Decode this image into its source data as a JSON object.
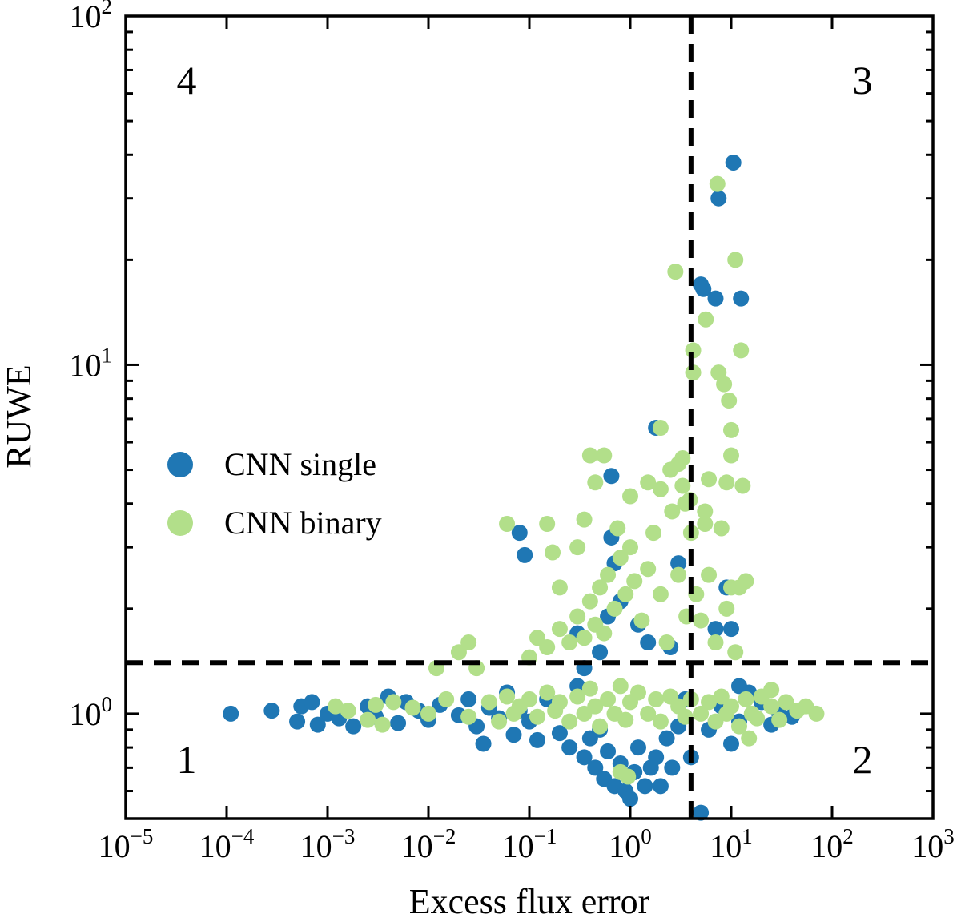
{
  "chart_data": {
    "type": "scatter",
    "xlabel": "Excess flux error",
    "ylabel": "RUWE",
    "xscale": "log",
    "yscale": "log",
    "xlim": [
      1e-05,
      1000
    ],
    "ylim": [
      0.5,
      100
    ],
    "x_tick_labels": [
      {
        "base": "10",
        "exp": "−5",
        "value": 1e-05
      },
      {
        "base": "10",
        "exp": "−4",
        "value": 0.0001
      },
      {
        "base": "10",
        "exp": "−3",
        "value": 0.001
      },
      {
        "base": "10",
        "exp": "−2",
        "value": 0.01
      },
      {
        "base": "10",
        "exp": "−1",
        "value": 0.1
      },
      {
        "base": "10",
        "exp": "0",
        "value": 1
      },
      {
        "base": "10",
        "exp": "1",
        "value": 10
      },
      {
        "base": "10",
        "exp": "2",
        "value": 100
      },
      {
        "base": "10",
        "exp": "3",
        "value": 1000
      }
    ],
    "y_tick_labels": [
      {
        "base": "10",
        "exp": "0",
        "value": 1
      },
      {
        "base": "10",
        "exp": "1",
        "value": 10
      },
      {
        "base": "10",
        "exp": "2",
        "value": 100
      }
    ],
    "grid": false,
    "legend_placement": "center-left",
    "threshold_lines": {
      "x": 4,
      "y": 1.4,
      "style": "dashed",
      "color": "#000000"
    },
    "quadrant_labels": [
      {
        "text": "1",
        "position": "bottom-left"
      },
      {
        "text": "2",
        "position": "bottom-right"
      },
      {
        "text": "3",
        "position": "top-right"
      },
      {
        "text": "4",
        "position": "top-left"
      }
    ],
    "series": [
      {
        "name": "CNN single",
        "color": "#1f77b4",
        "points": [
          [
            0.00011,
            1.0
          ],
          [
            0.00028,
            1.02
          ],
          [
            0.0005,
            0.95
          ],
          [
            0.00055,
            1.05
          ],
          [
            0.0007,
            1.08
          ],
          [
            0.0008,
            0.93
          ],
          [
            0.001,
            1.0
          ],
          [
            0.0013,
            0.97
          ],
          [
            0.0018,
            0.92
          ],
          [
            0.0025,
            1.05
          ],
          [
            0.003,
            0.98
          ],
          [
            0.004,
            1.12
          ],
          [
            0.005,
            0.94
          ],
          [
            0.006,
            1.08
          ],
          [
            0.008,
            1.02
          ],
          [
            0.01,
            0.96
          ],
          [
            0.013,
            1.06
          ],
          [
            0.02,
            0.99
          ],
          [
            0.025,
            1.1
          ],
          [
            0.03,
            0.92
          ],
          [
            0.035,
            0.82
          ],
          [
            0.04,
            1.04
          ],
          [
            0.05,
            0.97
          ],
          [
            0.06,
            1.15
          ],
          [
            0.07,
            0.87
          ],
          [
            0.08,
            1.02
          ],
          [
            0.1,
            0.95
          ],
          [
            0.12,
            0.84
          ],
          [
            0.15,
            1.1
          ],
          [
            0.2,
            0.88
          ],
          [
            0.25,
            0.8
          ],
          [
            0.3,
            1.2
          ],
          [
            0.35,
            0.75
          ],
          [
            0.4,
            0.85
          ],
          [
            0.45,
            0.7
          ],
          [
            0.5,
            0.9
          ],
          [
            0.55,
            0.65
          ],
          [
            0.6,
            0.78
          ],
          [
            0.7,
            0.62
          ],
          [
            0.8,
            0.72
          ],
          [
            0.9,
            0.6
          ],
          [
            1.0,
            0.57
          ],
          [
            1.1,
            0.68
          ],
          [
            1.2,
            0.8
          ],
          [
            1.4,
            0.62
          ],
          [
            1.6,
            0.7
          ],
          [
            1.8,
            0.75
          ],
          [
            2.0,
            0.62
          ],
          [
            2.3,
            0.85
          ],
          [
            2.6,
            0.7
          ],
          [
            3,
            0.92
          ],
          [
            3.5,
            1.1
          ],
          [
            4,
            0.75
          ],
          [
            5,
            0.52
          ],
          [
            6,
            0.9
          ],
          [
            8,
            1.05
          ],
          [
            10,
            0.82
          ],
          [
            12,
            0.95
          ],
          [
            15,
            1.15
          ],
          [
            20,
            1.08
          ],
          [
            25,
            0.93
          ],
          [
            30,
            1.0
          ],
          [
            40,
            0.98
          ],
          [
            0.3,
            1.7
          ],
          [
            0.5,
            1.5
          ],
          [
            0.6,
            1.9
          ],
          [
            0.8,
            2.1
          ],
          [
            1.2,
            1.8
          ],
          [
            1.5,
            1.6
          ],
          [
            2.5,
            1.55
          ],
          [
            3,
            2.7
          ],
          [
            0.35,
            1.35
          ],
          [
            7,
            1.75
          ],
          [
            9,
            2.3
          ],
          [
            10,
            1.75
          ],
          [
            12,
            1.2
          ],
          [
            10.5,
            38
          ],
          [
            7.5,
            30
          ],
          [
            5,
            17
          ],
          [
            5.3,
            16.5
          ],
          [
            7,
            15.5
          ],
          [
            12.5,
            15.5
          ],
          [
            1.8,
            6.6
          ],
          [
            0.65,
            4.8
          ],
          [
            0.08,
            3.3
          ],
          [
            0.09,
            2.85
          ],
          [
            0.65,
            3.2
          ],
          [
            0.7,
            2.7
          ]
        ]
      },
      {
        "name": "CNN binary",
        "color": "#b2df8a",
        "points": [
          [
            0.0012,
            1.05
          ],
          [
            0.0016,
            1.02
          ],
          [
            0.0025,
            0.96
          ],
          [
            0.003,
            1.06
          ],
          [
            0.0035,
            0.93
          ],
          [
            0.0045,
            1.08
          ],
          [
            0.007,
            1.04
          ],
          [
            0.01,
            1.0
          ],
          [
            0.012,
            1.35
          ],
          [
            0.015,
            1.1
          ],
          [
            0.02,
            1.5
          ],
          [
            0.025,
            1.6
          ],
          [
            0.03,
            1.35
          ],
          [
            0.025,
            0.98
          ],
          [
            0.04,
            1.08
          ],
          [
            0.05,
            0.95
          ],
          [
            0.06,
            1.12
          ],
          [
            0.07,
            1.0
          ],
          [
            0.08,
            1.05
          ],
          [
            0.1,
            1.1
          ],
          [
            0.12,
            0.98
          ],
          [
            0.15,
            1.15
          ],
          [
            0.18,
            1.02
          ],
          [
            0.2,
            1.08
          ],
          [
            0.25,
            0.95
          ],
          [
            0.3,
            1.12
          ],
          [
            0.35,
            1.0
          ],
          [
            0.4,
            1.18
          ],
          [
            0.45,
            1.05
          ],
          [
            0.5,
            0.92
          ],
          [
            0.6,
            1.1
          ],
          [
            0.7,
            1.0
          ],
          [
            0.8,
            1.2
          ],
          [
            0.9,
            0.96
          ],
          [
            1,
            1.08
          ],
          [
            1.2,
            1.15
          ],
          [
            1.5,
            1.0
          ],
          [
            1.8,
            1.1
          ],
          [
            2,
            0.95
          ],
          [
            2.5,
            1.12
          ],
          [
            3,
            1.05
          ],
          [
            3.5,
            0.98
          ],
          [
            4,
            1.1
          ],
          [
            5,
            1.0
          ],
          [
            6,
            1.08
          ],
          [
            7,
            0.95
          ],
          [
            8,
            1.12
          ],
          [
            9,
            1.0
          ],
          [
            10,
            1.05
          ],
          [
            12,
            0.92
          ],
          [
            14,
            1.1
          ],
          [
            16,
            1.0
          ],
          [
            18,
            0.97
          ],
          [
            20,
            1.12
          ],
          [
            25,
            1.05
          ],
          [
            30,
            0.96
          ],
          [
            35,
            1.08
          ],
          [
            45,
            1.02
          ],
          [
            55,
            1.05
          ],
          [
            70,
            1.0
          ],
          [
            0.8,
            0.68
          ],
          [
            0.95,
            0.66
          ],
          [
            15,
            0.85
          ],
          [
            25,
            1.17
          ],
          [
            0.1,
            1.45
          ],
          [
            0.12,
            1.65
          ],
          [
            0.15,
            1.55
          ],
          [
            0.2,
            1.75
          ],
          [
            0.25,
            1.6
          ],
          [
            0.3,
            1.9
          ],
          [
            0.35,
            1.65
          ],
          [
            0.4,
            2.1
          ],
          [
            0.45,
            1.8
          ],
          [
            0.5,
            2.3
          ],
          [
            0.55,
            1.7
          ],
          [
            0.6,
            2.5
          ],
          [
            0.7,
            2.0
          ],
          [
            0.8,
            2.8
          ],
          [
            0.9,
            2.2
          ],
          [
            1,
            3.0
          ],
          [
            1.1,
            2.4
          ],
          [
            1.3,
            1.85
          ],
          [
            1.5,
            2.6
          ],
          [
            1.7,
            3.3
          ],
          [
            2,
            2.2
          ],
          [
            2.3,
            1.6
          ],
          [
            2.6,
            3.8
          ],
          [
            3,
            2.5
          ],
          [
            3.3,
            4.5
          ],
          [
            3.6,
            1.9
          ],
          [
            4,
            3.3
          ],
          [
            4.5,
            2.2
          ],
          [
            5,
            1.85
          ],
          [
            5.5,
            3.8
          ],
          [
            6,
            2.5
          ],
          [
            7,
            1.6
          ],
          [
            8,
            3.4
          ],
          [
            9,
            2.0
          ],
          [
            10,
            2.3
          ],
          [
            11,
            1.5
          ],
          [
            0.17,
            2.9
          ],
          [
            0.15,
            3.5
          ],
          [
            0.2,
            2.3
          ],
          [
            0.3,
            3.0
          ],
          [
            0.35,
            3.6
          ],
          [
            0.4,
            5.5
          ],
          [
            0.55,
            5.5
          ],
          [
            0.45,
            4.6
          ],
          [
            0.75,
            3.4
          ],
          [
            1.0,
            4.2
          ],
          [
            1.5,
            4.6
          ],
          [
            2.0,
            4.4
          ],
          [
            2.5,
            5.0
          ],
          [
            3.0,
            5.2
          ],
          [
            3.3,
            5.4
          ],
          [
            3.9,
            4.1
          ],
          [
            6,
            4.7
          ],
          [
            9,
            4.6
          ],
          [
            13,
            4.5
          ],
          [
            10,
            5.5
          ],
          [
            10,
            6.5
          ],
          [
            2,
            6.6
          ],
          [
            8.5,
            8.8
          ],
          [
            9.5,
            7.9
          ],
          [
            4.2,
            9.5
          ],
          [
            7.5,
            9.5
          ],
          [
            4.2,
            11
          ],
          [
            12.5,
            11
          ],
          [
            5.6,
            13.5
          ],
          [
            2.8,
            18.5
          ],
          [
            11,
            20
          ],
          [
            7.3,
            33
          ],
          [
            0.06,
            3.5
          ],
          [
            14,
            2.4
          ],
          [
            12,
            2.3
          ],
          [
            3.5,
            4.0
          ],
          [
            5.5,
            3.5
          ]
        ]
      }
    ]
  }
}
